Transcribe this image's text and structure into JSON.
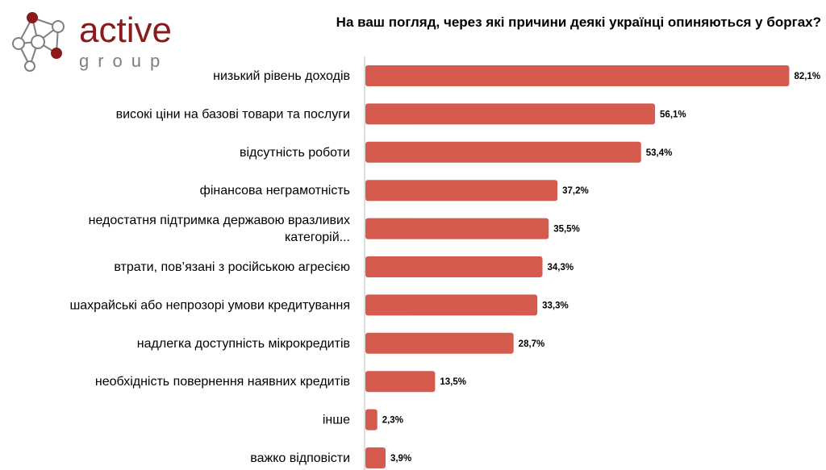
{
  "logo": {
    "word": "active",
    "sub": "group"
  },
  "chart_data": {
    "type": "bar",
    "orientation": "horizontal",
    "title": "На ваш погляд, через які причини деякі українці опиняються у боргах?",
    "xlabel": "",
    "ylabel": "",
    "xlim": [
      0,
      100
    ],
    "grid": false,
    "legend": "none",
    "bar_color": "#D45B4D",
    "categories": [
      [
        "низький рівень доходів"
      ],
      [
        "високі ціни на базові товари та послуги"
      ],
      [
        "відсутність роботи"
      ],
      [
        "фінансова неграмотність"
      ],
      [
        "недостатня підтримка державою вразливих",
        "категорій..."
      ],
      [
        "втрати, пов’язані з російською агресією"
      ],
      [
        "шахрайські або непрозорі умови кредитування"
      ],
      [
        "надлегка доступність мікрокредитів"
      ],
      [
        "необхідність повернення наявних кредитів"
      ],
      [
        "інше"
      ],
      [
        "важко відповісти"
      ]
    ],
    "values": [
      82.1,
      56.1,
      53.4,
      37.2,
      35.5,
      34.3,
      33.3,
      28.7,
      13.5,
      2.3,
      3.9
    ],
    "value_labels": [
      "82,1%",
      "56,1%",
      "53,4%",
      "37,2%",
      "35,5%",
      "34,3%",
      "33,3%",
      "28,7%",
      "13,5%",
      "2,3%",
      "3,9%"
    ]
  }
}
